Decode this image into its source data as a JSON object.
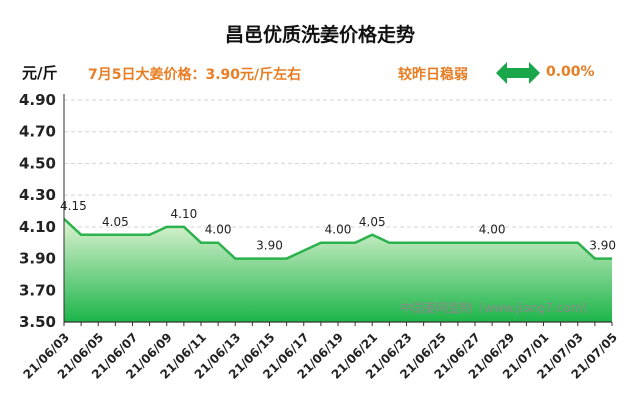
{
  "header": {
    "title": "昌邑优质洗姜价格走势",
    "unit": "元/斤",
    "price_note": "7月5日大姜价格：3.90元/斤左右",
    "change_label": "较昨日稳弱",
    "change_value": "0.00%",
    "change_icon": "double-arrow-icon"
  },
  "watermark": "中国姜网监制（www.jiang7.com）",
  "colors": {
    "accent": "#e87d24",
    "line": "#2bb24c",
    "fill_top": "#dff3d3",
    "fill_bottom": "#1cb54a",
    "arrow": "#1aa64a"
  },
  "chart_data": {
    "type": "area",
    "ylim": [
      3.5,
      4.9
    ],
    "yticks": [
      "4.90",
      "4.70",
      "4.50",
      "4.30",
      "4.10",
      "3.90",
      "3.70",
      "3.50"
    ],
    "grid": true,
    "x_tick_labels": [
      "21/06/03",
      "21/06/05",
      "21/06/07",
      "21/06/09",
      "21/06/11",
      "21/06/13",
      "21/06/15",
      "21/06/17",
      "21/06/19",
      "21/06/21",
      "21/06/23",
      "21/06/25",
      "21/06/27",
      "21/06/29",
      "21/07/01",
      "21/07/03",
      "21/07/05"
    ],
    "x": [
      "21/06/03",
      "21/06/04",
      "21/06/05",
      "21/06/06",
      "21/06/07",
      "21/06/08",
      "21/06/09",
      "21/06/10",
      "21/06/11",
      "21/06/12",
      "21/06/13",
      "21/06/14",
      "21/06/15",
      "21/06/16",
      "21/06/17",
      "21/06/18",
      "21/06/19",
      "21/06/20",
      "21/06/21",
      "21/06/22",
      "21/06/23",
      "21/06/24",
      "21/06/25",
      "21/06/26",
      "21/06/27",
      "21/06/28",
      "21/06/29",
      "21/06/30",
      "21/07/01",
      "21/07/02",
      "21/07/03",
      "21/07/04",
      "21/07/05"
    ],
    "values": [
      4.15,
      4.05,
      4.05,
      4.05,
      4.05,
      4.05,
      4.1,
      4.1,
      4.0,
      4.0,
      3.9,
      3.9,
      3.9,
      3.9,
      3.95,
      4.0,
      4.0,
      4.0,
      4.05,
      4.0,
      4.0,
      4.0,
      4.0,
      4.0,
      4.0,
      4.0,
      4.0,
      4.0,
      4.0,
      4.0,
      4.0,
      3.9,
      3.9
    ],
    "data_labels": [
      {
        "index": 0,
        "text": "4.15"
      },
      {
        "index": 3,
        "text": "4.05"
      },
      {
        "index": 7,
        "text": "4.10"
      },
      {
        "index": 9,
        "text": "4.00"
      },
      {
        "index": 12,
        "text": "3.90"
      },
      {
        "index": 16,
        "text": "4.00"
      },
      {
        "index": 18,
        "text": "4.05"
      },
      {
        "index": 25,
        "text": "4.00"
      },
      {
        "index": 32,
        "text": "3.90"
      }
    ]
  }
}
